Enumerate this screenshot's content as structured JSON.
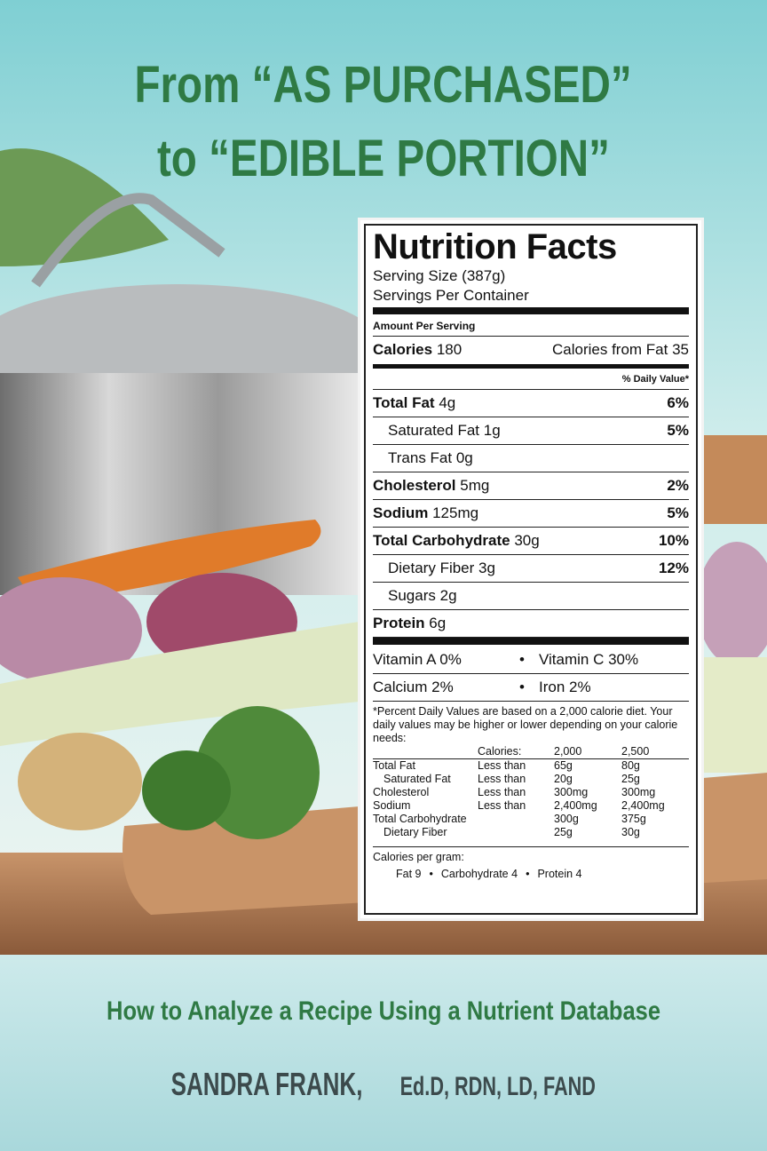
{
  "cover": {
    "title_lines": [
      "From “AS PURCHASED”",
      "to “EDIBLE PORTION”"
    ],
    "subtitle": "How to Analyze a Recipe Using a Nutrient Database",
    "author": "SANDRA FRANK,",
    "credentials": "Ed.D, RDN, LD, FAND"
  },
  "label": {
    "heading": "Nutrition Facts",
    "serving_size": "Serving Size (387g)",
    "servings": "Servings Per Container",
    "amount_per_serving": "Amount Per Serving",
    "calories": "Calories",
    "calories_amount": "180",
    "calories_from_fat": "Calories from Fat 35",
    "daily_value": "% Daily Value*",
    "rows": [
      {
        "name": "Total Fat",
        "amount": "4g",
        "dv": "6%",
        "bold": true
      },
      {
        "name": "Saturated Fat",
        "amount": "1g",
        "dv": "5%",
        "bold": false
      },
      {
        "name": "Trans Fat",
        "amount": "0g",
        "bold": false
      },
      {
        "name": "Cholesterol",
        "amount": "5mg",
        "dv": "2%",
        "bold": true
      },
      {
        "name": "Sodium",
        "amount": "125mg",
        "dv": "5%",
        "bold": true
      },
      {
        "name": "Total Carbohydrate",
        "amount": "30g",
        "dv": "10%",
        "bold": true
      },
      {
        "name": "Dietary Fiber",
        "amount": "3g",
        "dv": "12%",
        "bold": false
      },
      {
        "name": "Sugars",
        "amount": "2g",
        "bold": false
      },
      {
        "name": "Protein",
        "amount": "6g",
        "bold": true
      }
    ],
    "vitamins": [
      [
        "Vitamin A 0%",
        "Vitamin C 30%"
      ],
      [
        "Calcium 2%",
        "Iron 2%"
      ]
    ],
    "separator": "•",
    "footnote": "*Percent Daily Values are based on a 2,000 calorie diet. Your daily values may be higher or lower depending on your calorie needs:",
    "table_header": {
      "label": "Calories:",
      "cols": [
        "2,000",
        "2,500"
      ]
    },
    "table_rows": [
      {
        "name": "Total Fat",
        "limit": "Less than",
        "cols": [
          "65g",
          "80g"
        ]
      },
      {
        "name": "Saturated Fat",
        "limit": "Less than",
        "cols": [
          "20g",
          "25g"
        ]
      },
      {
        "name": "Cholesterol",
        "limit": "Less than",
        "cols": [
          "300mg",
          "300mg"
        ]
      },
      {
        "name": "Sodium",
        "limit": "Less than",
        "cols": [
          "2,400mg",
          "2,400mg"
        ]
      },
      {
        "name": "Total Carbohydrate",
        "cols": [
          "300g",
          "375g"
        ]
      },
      {
        "name": "Dietary Fiber",
        "cols": [
          "25g",
          "30g"
        ]
      }
    ],
    "per_gram": "Calories per gram:",
    "per_gram_items": [
      "Fat 9",
      "Carbohydrate 4",
      "Protein 4"
    ]
  }
}
